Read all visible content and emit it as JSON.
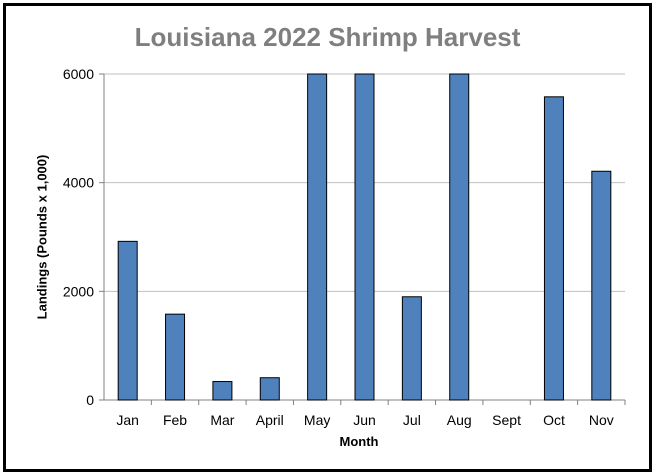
{
  "chart_data": {
    "type": "bar",
    "title": "Louisiana 2022 Shrimp Harvest",
    "xlabel": "Month",
    "ylabel": "Landings (Pounds x 1,000)",
    "categories": [
      "Jan",
      "Feb",
      "Mar",
      "April",
      "May",
      "Jun",
      "Jul",
      "Aug",
      "Sept",
      "Oct",
      "Nov"
    ],
    "values": [
      2920,
      1580,
      340,
      410,
      6000,
      6000,
      1900,
      6000,
      0,
      5580,
      4210
    ],
    "ylim": [
      0,
      6000
    ],
    "yticks": [
      0,
      2000,
      4000,
      6000
    ],
    "grid": true,
    "legend": "none",
    "bar_color": "#4f81bd",
    "title_color": "#7f7f7f"
  }
}
